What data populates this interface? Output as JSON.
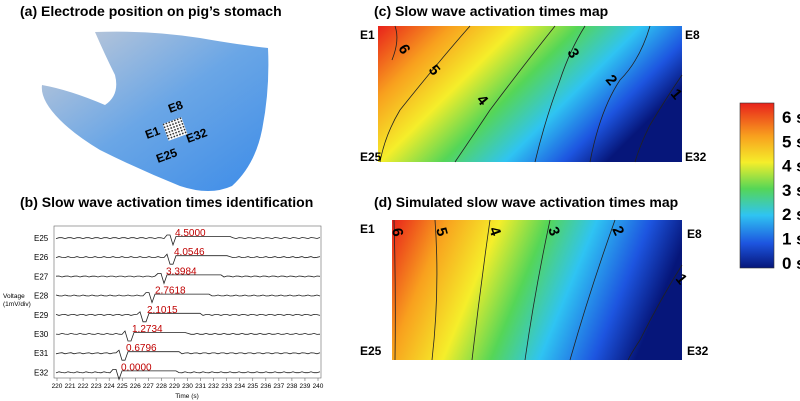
{
  "panels": {
    "a": {
      "title": "(a) Electrode position on pig’s stomach",
      "labels": [
        "E1",
        "E8",
        "E25",
        "E32"
      ]
    },
    "b": {
      "title": "(b) Slow wave activation times identification",
      "y_label": [
        "Voltage",
        "(1mV/div)"
      ],
      "x_label": "Time (s)",
      "xticks": [
        220,
        221,
        222,
        223,
        224,
        225,
        226,
        227,
        228,
        229,
        230,
        231,
        232,
        233,
        234,
        235,
        236,
        237,
        238,
        239,
        240
      ],
      "channels": [
        {
          "name": "E25",
          "label": "4.5000"
        },
        {
          "name": "E26",
          "label": "4.0546"
        },
        {
          "name": "E27",
          "label": "3.3984"
        },
        {
          "name": "E28",
          "label": "2.7618"
        },
        {
          "name": "E29",
          "label": "2.1015"
        },
        {
          "name": "E30",
          "label": "1.2734"
        },
        {
          "name": "E31",
          "label": "0.6796"
        },
        {
          "name": "E32",
          "label": "0.0000"
        }
      ]
    },
    "c": {
      "title": "(c) Slow wave activation times map",
      "corners": [
        "E1",
        "E8",
        "E25",
        "E32"
      ],
      "contours": [
        "6",
        "5",
        "4",
        "3",
        "2",
        "1"
      ]
    },
    "d": {
      "title": "(d) Simulated slow wave activation times map",
      "corners": [
        "E1",
        "E8",
        "E25",
        "E32"
      ],
      "contours": [
        "6",
        "5",
        "4",
        "3",
        "2",
        "1"
      ]
    },
    "colorbar": [
      "6 s",
      "5 s",
      "4 s",
      "3 s",
      "2 s",
      "1 s",
      "0 s"
    ]
  }
}
